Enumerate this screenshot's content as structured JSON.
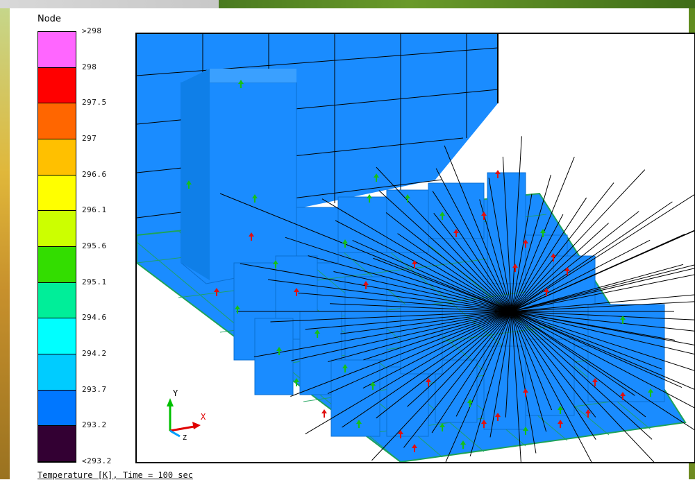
{
  "legend": {
    "title": "Node",
    "ticks": [
      ">298",
      "298",
      "297.5",
      "297",
      "296.6",
      "296.1",
      "295.6",
      "295.1",
      "294.6",
      "294.2",
      "293.7",
      "293.2",
      "<293.2"
    ],
    "colors": [
      "#ff66ff",
      "#ff0000",
      "#ff6600",
      "#ffc000",
      "#ffff00",
      "#ccff00",
      "#33dd00",
      "#00ee99",
      "#00ffff",
      "#00ccff",
      "#0077ff",
      "#330033"
    ]
  },
  "caption": "Temperature [K], Time = 100 sec",
  "scene": {
    "model_color": "#1a8cff",
    "ground_color": "#1ea35a",
    "axis_triad": {
      "y": "Y",
      "x": "X",
      "z": "Z"
    }
  }
}
